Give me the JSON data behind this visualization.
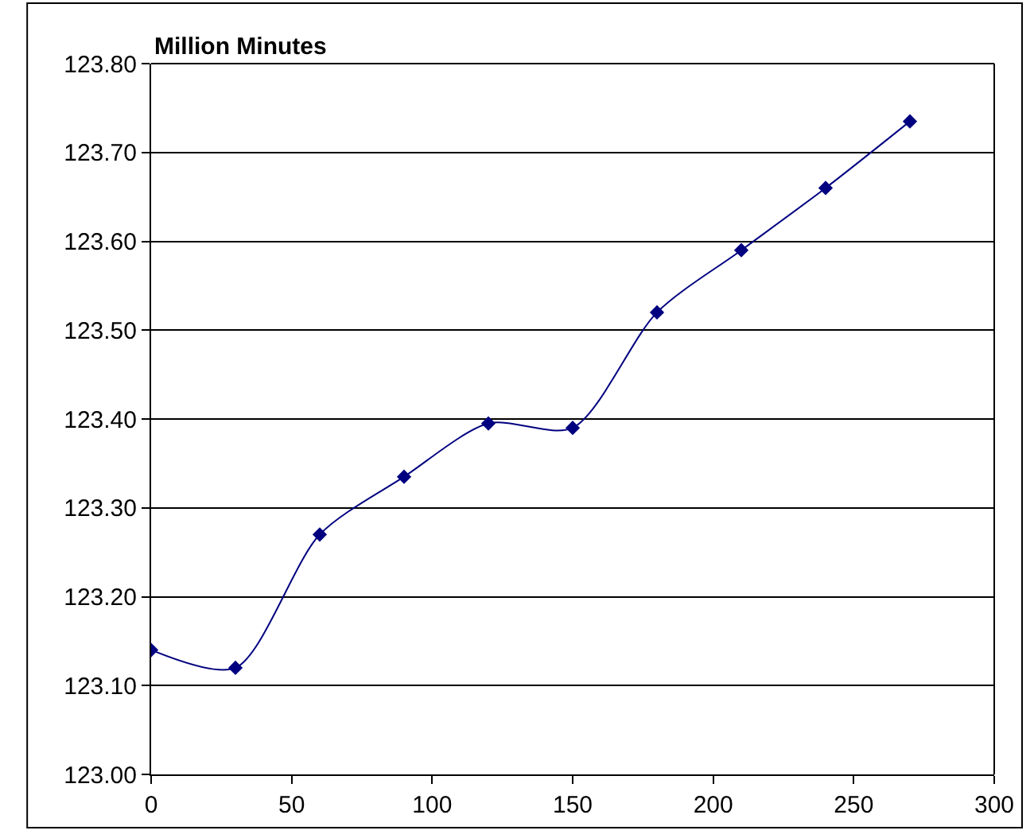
{
  "chart_data": {
    "type": "line",
    "ylabel": "Million Minutes",
    "x": [
      0,
      30,
      60,
      90,
      120,
      150,
      180,
      210,
      240,
      270
    ],
    "series": [
      {
        "color": "#000080",
        "values": [
          123.14,
          123.12,
          123.27,
          123.335,
          123.395,
          123.39,
          123.52,
          123.59,
          123.66,
          123.735
        ]
      }
    ],
    "xlim": [
      0,
      300
    ],
    "xticks": [
      0,
      50,
      100,
      150,
      200,
      250,
      300
    ],
    "ylim": [
      123.0,
      123.8
    ],
    "yticks": [
      {
        "value": 123.0,
        "label": "123.00"
      },
      {
        "value": 123.1,
        "label": "123.10"
      },
      {
        "value": 123.2,
        "label": "123.20"
      },
      {
        "value": 123.3,
        "label": "123.30"
      },
      {
        "value": 123.4,
        "label": "123.40"
      },
      {
        "value": 123.5,
        "label": "123.50"
      },
      {
        "value": 123.6,
        "label": "123.60"
      },
      {
        "value": 123.7,
        "label": "123.70"
      },
      {
        "value": 123.8,
        "label": "123.80"
      }
    ],
    "grid": "y",
    "marker": "diamond",
    "line_style": "solid",
    "legend": false
  }
}
